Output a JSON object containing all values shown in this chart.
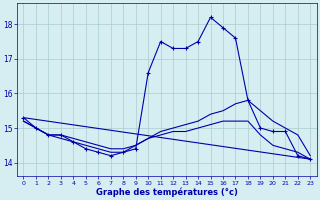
{
  "title": "Graphe des températures (°c)",
  "background_color": "#d6eef2",
  "grid_color": "#aacccc",
  "line_color": "#0000aa",
  "xlim": [
    -0.5,
    23.5
  ],
  "ylim": [
    13.6,
    18.6
  ],
  "yticks": [
    14,
    15,
    16,
    17,
    18
  ],
  "xticks": [
    0,
    1,
    2,
    3,
    4,
    5,
    6,
    7,
    8,
    9,
    10,
    11,
    12,
    13,
    14,
    15,
    16,
    17,
    18,
    19,
    20,
    21,
    22,
    23
  ],
  "series": [
    {
      "x": [
        0,
        1,
        2,
        3,
        4,
        5,
        6,
        7,
        8,
        9,
        10,
        11,
        12,
        13,
        14,
        15,
        16,
        17,
        18,
        19,
        20,
        21,
        22,
        23
      ],
      "y": [
        15.3,
        15.0,
        14.8,
        14.8,
        14.6,
        14.4,
        14.3,
        14.2,
        14.3,
        14.4,
        16.6,
        17.5,
        17.3,
        17.3,
        17.5,
        18.2,
        17.9,
        17.6,
        15.8,
        15.0,
        14.9,
        14.9,
        14.2,
        14.1
      ],
      "marker": true
    },
    {
      "x": [
        0,
        1,
        2,
        3,
        4,
        5,
        6,
        7,
        8,
        9,
        10,
        11,
        12,
        13,
        14,
        15,
        16,
        17,
        18,
        19,
        20,
        21,
        22,
        23
      ],
      "y": [
        15.2,
        15.0,
        14.8,
        14.8,
        14.7,
        14.6,
        14.5,
        14.4,
        14.4,
        14.5,
        14.7,
        14.9,
        15.0,
        15.1,
        15.2,
        15.4,
        15.5,
        15.7,
        15.8,
        15.5,
        15.2,
        15.0,
        14.8,
        14.2
      ],
      "marker": false
    },
    {
      "x": [
        0,
        1,
        2,
        3,
        4,
        5,
        6,
        7,
        8,
        9,
        10,
        11,
        12,
        13,
        14,
        15,
        16,
        17,
        18,
        19,
        20,
        21,
        22,
        23
      ],
      "y": [
        15.2,
        15.0,
        14.8,
        14.7,
        14.6,
        14.5,
        14.4,
        14.3,
        14.3,
        14.5,
        14.7,
        14.8,
        14.9,
        14.9,
        15.0,
        15.1,
        15.2,
        15.2,
        15.2,
        14.8,
        14.5,
        14.4,
        14.3,
        14.1
      ],
      "marker": false
    },
    {
      "x": [
        0,
        23
      ],
      "y": [
        15.3,
        14.1
      ],
      "marker": false
    }
  ]
}
